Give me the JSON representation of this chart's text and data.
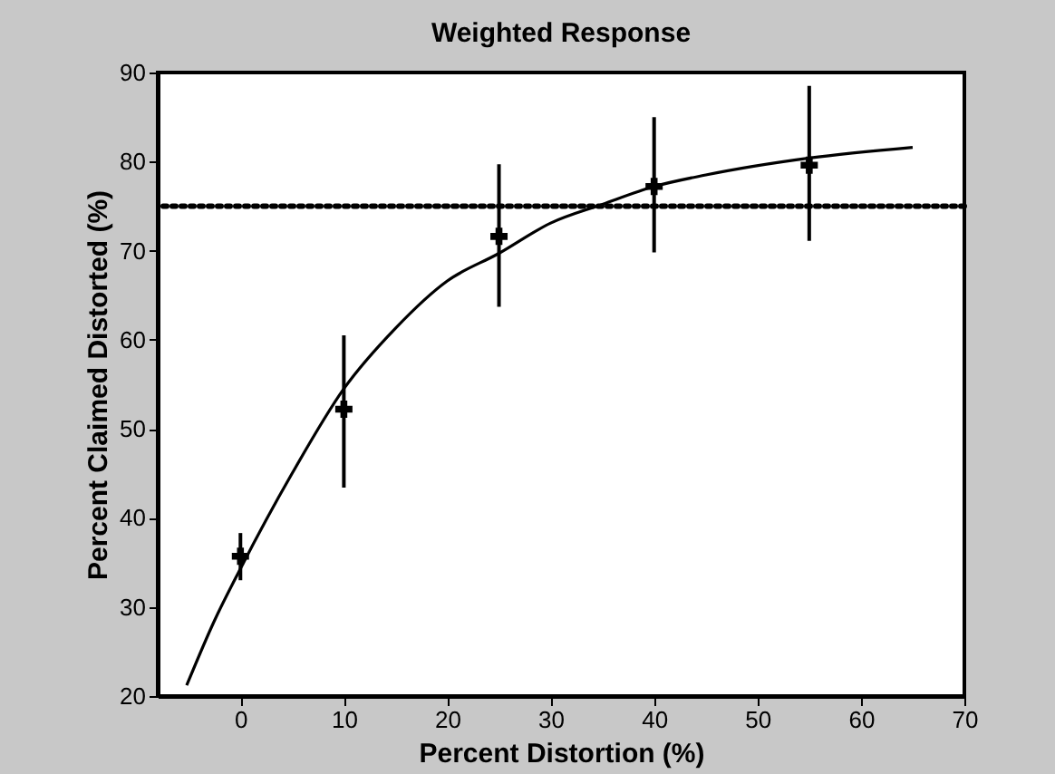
{
  "chart_data": {
    "type": "scatter",
    "title": "Weighted Response",
    "xlabel": "Percent Distortion (%)",
    "ylabel": "Percent Claimed Distorted (%)",
    "xlim": [
      -8,
      70
    ],
    "xticks": [
      0,
      10,
      20,
      30,
      40,
      50,
      60,
      70
    ],
    "ylim": [
      20,
      90
    ],
    "yticks": [
      20,
      30,
      40,
      50,
      60,
      70,
      80,
      90
    ],
    "grid": false,
    "ref_lines": [
      {
        "axis": "y",
        "value": 75,
        "line_style": "dotted",
        "color": "#000000"
      }
    ],
    "series": [
      {
        "type": "line",
        "color": "#000000",
        "line_style": "solid",
        "x": [
          -5.2,
          -2.5,
          0,
          5,
          10,
          15,
          20,
          25,
          30,
          35,
          40,
          45,
          55,
          65
        ],
        "values": [
          21.2,
          28.5,
          34.3,
          45,
          54.5,
          61.3,
          66.6,
          69.7,
          73.1,
          75.2,
          77.2,
          78.5,
          80.4,
          81.6
        ]
      },
      {
        "color": "#000000",
        "marker": "cross",
        "x": [
          0,
          10,
          25,
          40,
          55
        ],
        "values": [
          35.7,
          52.2,
          71.6,
          77.2,
          79.6
        ],
        "errors": [
          [
            33.0,
            38.3
          ],
          [
            43.4,
            60.5
          ],
          [
            63.7,
            79.7
          ],
          [
            69.8,
            85.0
          ],
          [
            71.1,
            88.5
          ]
        ]
      }
    ]
  }
}
